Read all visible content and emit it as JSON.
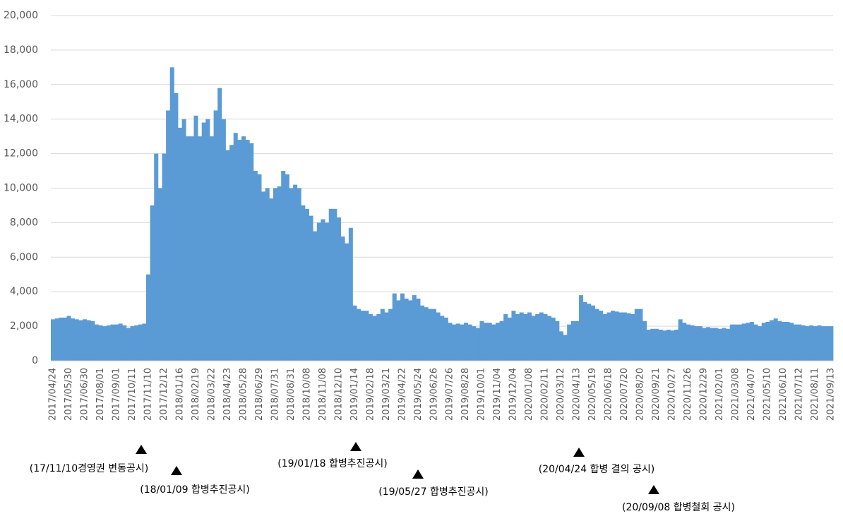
{
  "chart_data": {
    "type": "bar",
    "color": "#5b9bd5",
    "grid": true,
    "ylim": [
      0,
      20000
    ],
    "yticks": [
      0,
      {
        "value": 2000,
        "label": "2,000"
      },
      {
        "value": 4000,
        "label": "4,000"
      },
      {
        "value": 6000,
        "label": "6,000"
      },
      {
        "value": 8000,
        "label": "8,000"
      },
      {
        "value": 10000,
        "label": "10,000"
      },
      {
        "value": 12000,
        "label": "12,000"
      },
      {
        "value": 14000,
        "label": "14,000"
      },
      {
        "value": 16000,
        "label": "16,000"
      },
      {
        "value": 18000,
        "label": "18,000"
      },
      {
        "value": 20000,
        "label": "20,000"
      }
    ],
    "categories": [
      "2017/04/24",
      null,
      null,
      null,
      "2017/05/30",
      null,
      null,
      null,
      "2017/06/30",
      null,
      null,
      null,
      "2017/08/01",
      null,
      null,
      null,
      "2017/09/01",
      null,
      null,
      null,
      "2017/10/11",
      null,
      null,
      null,
      "2017/11/10",
      null,
      null,
      null,
      "2017/12/12",
      null,
      null,
      null,
      "2018/01/16",
      null,
      null,
      null,
      "2018/02/19",
      null,
      null,
      null,
      "2018/03/22",
      null,
      null,
      null,
      "2018/04/23",
      null,
      null,
      null,
      "2018/05/28",
      null,
      null,
      null,
      "2018/06/29",
      null,
      null,
      null,
      "2018/07/31",
      null,
      null,
      null,
      "2018/08/31",
      null,
      null,
      null,
      "2018/10/08",
      null,
      null,
      null,
      "2018/11/08",
      null,
      null,
      null,
      "2018/12/10",
      null,
      null,
      null,
      "2019/01/14",
      null,
      null,
      null,
      "2019/02/18",
      null,
      null,
      null,
      "2019/03/21",
      null,
      null,
      null,
      "2019/04/22",
      null,
      null,
      null,
      "2019/05/24",
      null,
      null,
      null,
      "2019/06/26",
      null,
      null,
      null,
      "2019/07/26",
      null,
      null,
      null,
      "2019/08/28",
      null,
      null,
      null,
      "2019/10/01",
      null,
      null,
      null,
      "2019/11/04",
      null,
      null,
      null,
      "2019/12/04",
      null,
      null,
      null,
      "2020/01/08",
      null,
      null,
      null,
      "2020/02/11",
      null,
      null,
      null,
      "2020/03/12",
      null,
      null,
      null,
      "2020/04/13",
      null,
      null,
      null,
      "2020/05/19",
      null,
      null,
      null,
      "2020/06/18",
      null,
      null,
      null,
      "2020/07/20",
      null,
      null,
      null,
      "2020/08/20",
      null,
      null,
      null,
      "2020/09/21",
      null,
      null,
      null,
      "2020/10/27",
      null,
      null,
      null,
      "2020/11/26",
      null,
      null,
      null,
      "2020/12/29",
      null,
      null,
      null,
      "2021/02/01",
      null,
      null,
      null,
      "2021/03/08",
      null,
      null,
      null,
      "2021/04/07",
      null,
      null,
      null,
      "2021/05/10",
      null,
      null,
      null,
      "2021/06/10",
      null,
      null,
      null,
      "2021/07/12",
      null,
      null,
      null,
      "2021/08/11",
      null,
      null,
      null,
      "2021/09/13"
    ],
    "values": [
      2400,
      2450,
      2500,
      2500,
      2600,
      2450,
      2400,
      2350,
      2400,
      2350,
      2300,
      2100,
      2050,
      2000,
      2050,
      2100,
      2100,
      2150,
      2050,
      1900,
      2000,
      2050,
      2100,
      2150,
      5000,
      9000,
      12000,
      10000,
      12000,
      14500,
      17000,
      15500,
      13500,
      14000,
      13000,
      13000,
      14200,
      13000,
      13800,
      14000,
      13000,
      14500,
      15800,
      14000,
      12200,
      12500,
      13200,
      12800,
      13000,
      12800,
      12600,
      11000,
      10800,
      9800,
      10000,
      9400,
      10000,
      10100,
      11000,
      10800,
      10000,
      10200,
      10000,
      9000,
      8800,
      8400,
      7500,
      8000,
      8200,
      8000,
      8800,
      8800,
      8300,
      7200,
      6800,
      7700,
      3200,
      3000,
      2900,
      2900,
      2700,
      2600,
      2700,
      3000,
      2800,
      3000,
      3900,
      3500,
      3900,
      3600,
      3500,
      3800,
      3600,
      3200,
      3100,
      3000,
      3000,
      2800,
      2600,
      2500,
      2200,
      2100,
      2150,
      2100,
      2200,
      2100,
      2000,
      1900,
      2300,
      2200,
      2200,
      2100,
      2200,
      2300,
      2700,
      2500,
      2900,
      2700,
      2800,
      2700,
      2800,
      2600,
      2700,
      2800,
      2700,
      2600,
      2500,
      2300,
      1700,
      1500,
      2100,
      2300,
      2300,
      3800,
      3400,
      3300,
      3200,
      3000,
      2900,
      2700,
      2800,
      2900,
      2850,
      2800,
      2800,
      2750,
      2700,
      3000,
      3000,
      2300,
      1800,
      1850,
      1850,
      1800,
      1750,
      1800,
      1750,
      1800,
      2400,
      2200,
      2100,
      2050,
      2000,
      2000,
      1900,
      1950,
      1900,
      1900,
      1850,
      1900,
      1850,
      2100,
      2100,
      2100,
      2150,
      2200,
      2250,
      2100,
      2000,
      2200,
      2250,
      2350,
      2450,
      2300,
      2250,
      2250,
      2200,
      2100,
      2100,
      2050,
      2000,
      2050,
      2000,
      2050,
      2000,
      2000,
      2000
    ],
    "annotations": [
      "(17/11/10경영권 변동공시)",
      "(18/01/09 합병추진공시)",
      "(19/01/18 합병추진공시)",
      "(19/05/27 합병추진공시)",
      "(20/04/24 합병 결의 공시)",
      "(20/09/08 합병철회 공시)"
    ]
  }
}
